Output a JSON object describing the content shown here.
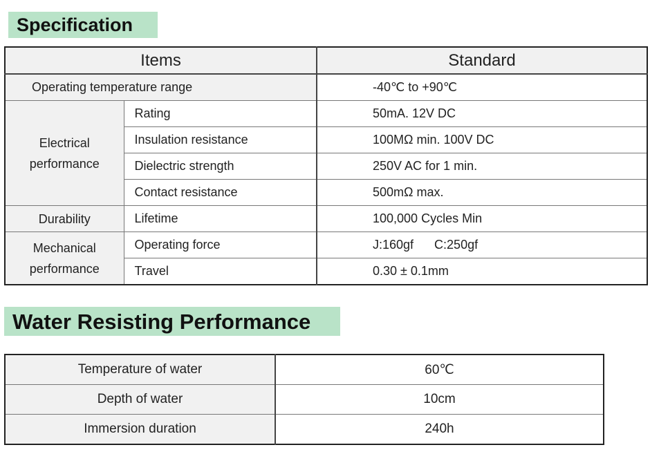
{
  "spec": {
    "title": "Specification",
    "headers": {
      "items": "Items",
      "standard": "Standard"
    },
    "op_temp": {
      "label": "Operating temperature range",
      "value": "-40℃  to +90℃"
    },
    "electrical": {
      "category_line1": "Electrical",
      "category_line2": "performance",
      "rows": [
        {
          "label": "Rating",
          "value": "50mA. 12V DC"
        },
        {
          "label": "Insulation resistance",
          "value": "100MΩ min. 100V DC"
        },
        {
          "label": "Dielectric strength",
          "value": "250V AC for 1 min."
        },
        {
          "label": "Contact resistance",
          "value": "500mΩ max."
        }
      ]
    },
    "durability": {
      "category": "Durability",
      "rows": [
        {
          "label": "Lifetime",
          "value": "100,000 Cycles Min"
        }
      ]
    },
    "mechanical": {
      "category_line1": "Mechanical",
      "category_line2": "performance",
      "rows": [
        {
          "label": "Operating force",
          "value": "J:160gf      C:250gf"
        },
        {
          "label": "Travel",
          "value": "0.30 ± 0.1mm"
        }
      ]
    }
  },
  "water": {
    "title": "Water Resisting Performance",
    "rows": [
      {
        "label": "Temperature of water",
        "value": "60℃"
      },
      {
        "label": "Depth of water",
        "value": "10cm"
      },
      {
        "label": "Immersion duration",
        "value": "240h"
      }
    ]
  }
}
